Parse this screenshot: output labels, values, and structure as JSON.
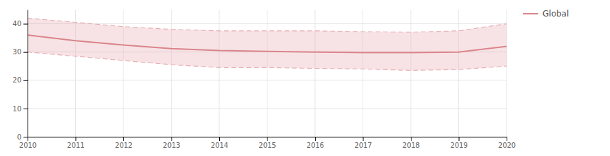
{
  "chart_data": {
    "type": "line",
    "x": [
      2010,
      2011,
      2012,
      2013,
      2014,
      2015,
      2016,
      2017,
      2018,
      2019,
      2020
    ],
    "series": [
      {
        "type": "line",
        "line_style": "dashed",
        "color": "#e8b0b5",
        "values": [
          42.0,
          40.5,
          39.0,
          38.0,
          37.5,
          37.5,
          37.5,
          37.2,
          37.0,
          37.5,
          40.0
        ]
      },
      {
        "type": "line",
        "line_style": "dashed",
        "color": "#e8b0b5",
        "values": [
          30.0,
          28.5,
          27.0,
          25.5,
          24.5,
          24.5,
          24.2,
          24.0,
          23.5,
          23.8,
          25.0
        ]
      },
      {
        "name": "Global",
        "type": "line",
        "line_style": "solid",
        "color": "#d9848a",
        "values": [
          36.0,
          34.0,
          32.5,
          31.2,
          30.5,
          30.2,
          30.0,
          29.8,
          29.8,
          30.0,
          32.0
        ]
      }
    ],
    "xlim": [
      2010,
      2020
    ],
    "xticks": [
      2010,
      2011,
      2012,
      2013,
      2014,
      2015,
      2016,
      2017,
      2018,
      2019,
      2020
    ],
    "ylim": [
      0,
      45
    ],
    "yticks": [
      0,
      10,
      20,
      30,
      40
    ],
    "grid": true,
    "legend": "right"
  }
}
